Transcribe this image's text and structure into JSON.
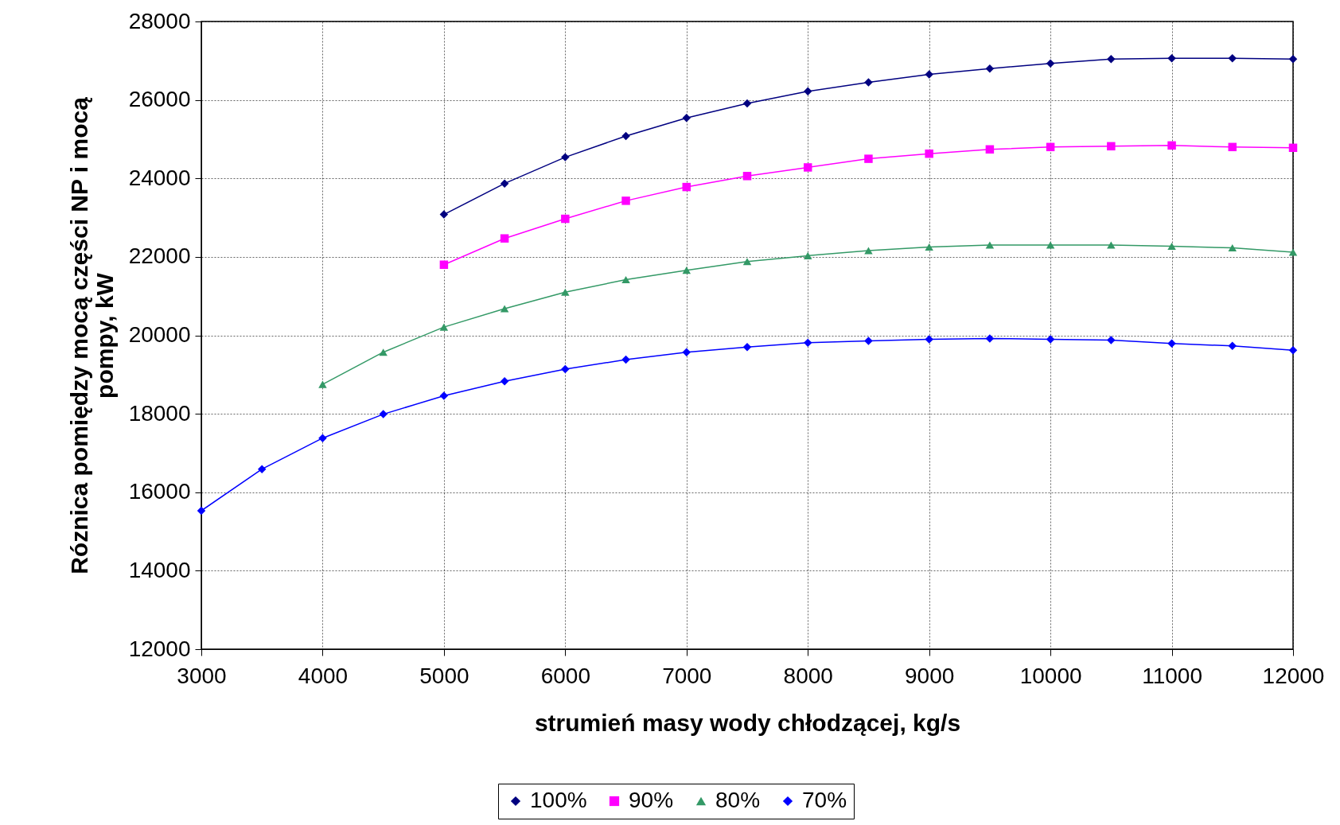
{
  "chart_data": {
    "type": "line",
    "xlabel": "strumień masy wody chłodzącej, kg/s",
    "ylabel": "Róznica pomiędzy mocą części NP i mocą pompy, kW",
    "xlim": [
      3000,
      12000
    ],
    "xticks": [
      3000,
      4000,
      5000,
      6000,
      7000,
      8000,
      9000,
      10000,
      11000,
      12000
    ],
    "ylim": [
      12000,
      28000
    ],
    "yticks": [
      12000,
      14000,
      16000,
      18000,
      20000,
      22000,
      24000,
      26000,
      28000
    ],
    "grid": true,
    "legend": "bottom",
    "line_style": "solid",
    "series": [
      {
        "name": "100%",
        "color": "#000080",
        "marker": "diamond",
        "x": [
          5000,
          5500,
          6000,
          6500,
          7000,
          7500,
          8000,
          8500,
          9000,
          9500,
          10000,
          10500,
          11000,
          11500,
          12000
        ],
        "values": [
          23080,
          23870,
          24540,
          25080,
          25540,
          25910,
          26220,
          26450,
          26650,
          26800,
          26930,
          27040,
          27060,
          27060,
          27040
        ]
      },
      {
        "name": "90%",
        "color": "#ff00ff",
        "marker": "square",
        "x": [
          5000,
          5500,
          6000,
          6500,
          7000,
          7500,
          8000,
          8500,
          9000,
          9500,
          10000,
          10500,
          11000,
          11500,
          12000
        ],
        "values": [
          21800,
          22470,
          22970,
          23430,
          23780,
          24060,
          24280,
          24500,
          24630,
          24740,
          24800,
          24820,
          24840,
          24800,
          24780
        ]
      },
      {
        "name": "80%",
        "color": "#339966",
        "marker": "triangle",
        "x": [
          4000,
          4500,
          5000,
          5500,
          6000,
          6500,
          7000,
          7500,
          8000,
          8500,
          9000,
          9500,
          10000,
          10500,
          11000,
          11500,
          12000
        ],
        "values": [
          18750,
          19570,
          20210,
          20680,
          21100,
          21420,
          21660,
          21880,
          22030,
          22160,
          22250,
          22300,
          22300,
          22300,
          22270,
          22230,
          22120
        ]
      },
      {
        "name": "70%",
        "color": "#0000ff",
        "marker": "diamond",
        "x": [
          3000,
          3500,
          4000,
          4500,
          5000,
          5500,
          6000,
          6500,
          7000,
          7500,
          8000,
          8500,
          9000,
          9500,
          10000,
          10500,
          11000,
          11500,
          12000
        ],
        "values": [
          15530,
          16590,
          17380,
          17990,
          18460,
          18830,
          19140,
          19380,
          19570,
          19700,
          19810,
          19860,
          19900,
          19920,
          19900,
          19880,
          19790,
          19730,
          19620
        ]
      }
    ]
  }
}
